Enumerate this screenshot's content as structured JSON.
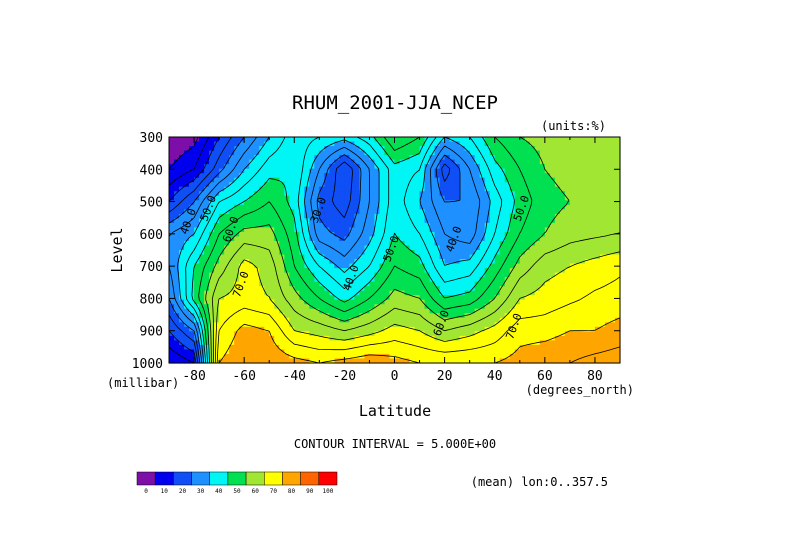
{
  "chart_data": {
    "type": "heatmap",
    "title": "RHUM_2001-JJA_NCEP",
    "units": "(units:%)",
    "xlabel": "Latitude",
    "ylabel": "Level",
    "x_unit": "(degrees_north)",
    "y_unit": "(millibar)",
    "xlim": [
      -90,
      90
    ],
    "ylim": [
      1000,
      300
    ],
    "x_ticks": [
      "-80",
      "-60",
      "-40",
      "-20",
      "0",
      "20",
      "40",
      "60",
      "80"
    ],
    "x_tick_values": [
      -80,
      -60,
      -40,
      -20,
      0,
      20,
      40,
      60,
      80
    ],
    "y_ticks": [
      "300",
      "400",
      "500",
      "600",
      "700",
      "800",
      "900",
      "1000"
    ],
    "y_tick_values": [
      300,
      400,
      500,
      600,
      700,
      800,
      900,
      1000
    ],
    "contour_interval_text": "CONTOUR INTERVAL = 5.000E+00",
    "footer_text": "(mean) lon:0..357.5",
    "contour_labels": [
      {
        "text": "40.0",
        "lat": -81,
        "lev": 565
      },
      {
        "text": "50.0",
        "lat": -73,
        "lev": 525
      },
      {
        "text": "60.0",
        "lat": -64,
        "lev": 590
      },
      {
        "text": "70.0",
        "lat": -60,
        "lev": 760
      },
      {
        "text": "30.0",
        "lat": -29,
        "lev": 530
      },
      {
        "text": "40.0",
        "lat": -16,
        "lev": 740
      },
      {
        "text": "50.0",
        "lat": 0,
        "lev": 650
      },
      {
        "text": "40.0",
        "lat": 25,
        "lev": 620
      },
      {
        "text": "60.0",
        "lat": 20,
        "lev": 880
      },
      {
        "text": "70.0",
        "lat": 49,
        "lev": 890
      },
      {
        "text": "50.0",
        "lat": 52,
        "lev": 525
      }
    ],
    "colorbar": {
      "boundaries": [
        "0",
        "10",
        "20",
        "30",
        "40",
        "50",
        "60",
        "70",
        "80",
        "90",
        "100"
      ],
      "colors": [
        "#7d0ea8",
        "#0000ee",
        "#0f4ff5",
        "#1e90ff",
        "#00f5f5",
        "#00e050",
        "#a0e632",
        "#ffff00",
        "#ffa500",
        "#ff6400",
        "#ff0000"
      ]
    },
    "lats": [
      -90,
      -80,
      -70,
      -60,
      -50,
      -40,
      -30,
      -20,
      -10,
      0,
      10,
      20,
      30,
      40,
      50,
      60,
      70,
      80,
      90
    ],
    "levels": [
      300,
      400,
      500,
      600,
      700,
      800,
      900,
      1000
    ],
    "values": [
      [
        5,
        8,
        20,
        30,
        40,
        48,
        45,
        42,
        48,
        60,
        55,
        40,
        45,
        55,
        60,
        62,
        62,
        62,
        60
      ],
      [
        10,
        15,
        28,
        40,
        48,
        50,
        35,
        20,
        35,
        48,
        45,
        22,
        35,
        48,
        55,
        60,
        62,
        63,
        62
      ],
      [
        20,
        30,
        45,
        50,
        55,
        48,
        28,
        22,
        35,
        48,
        40,
        30,
        30,
        42,
        52,
        58,
        60,
        61,
        62
      ],
      [
        35,
        40,
        55,
        62,
        62,
        52,
        32,
        28,
        38,
        50,
        45,
        35,
        32,
        45,
        55,
        60,
        63,
        64,
        65
      ],
      [
        35,
        50,
        62,
        72,
        68,
        55,
        45,
        38,
        45,
        55,
        52,
        40,
        42,
        52,
        62,
        68,
        70,
        72,
        74
      ],
      [
        30,
        52,
        70,
        72,
        70,
        62,
        55,
        48,
        55,
        62,
        60,
        50,
        52,
        60,
        70,
        72,
        74,
        76,
        77
      ],
      [
        20,
        30,
        75,
        82,
        80,
        70,
        68,
        65,
        68,
        72,
        70,
        65,
        68,
        72,
        78,
        78,
        80,
        80,
        82
      ],
      [
        10,
        15,
        80,
        85,
        84,
        82,
        80,
        82,
        84,
        82,
        80,
        80,
        80,
        80,
        82,
        84,
        85,
        87,
        88
      ]
    ]
  }
}
